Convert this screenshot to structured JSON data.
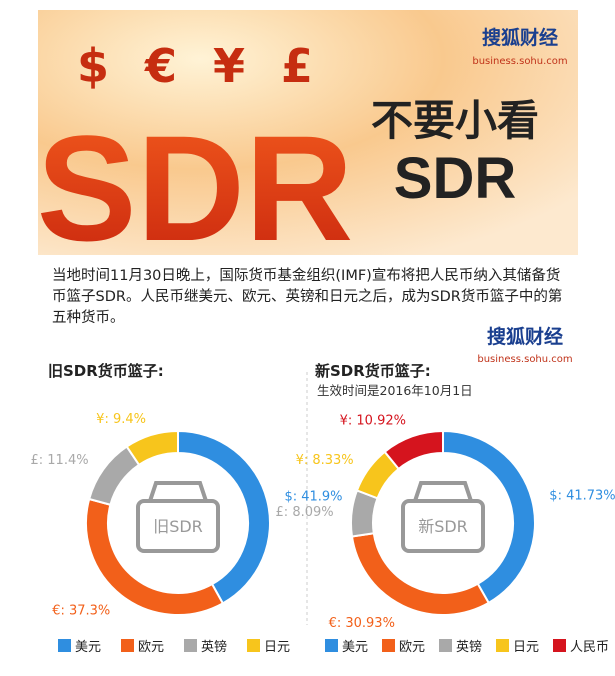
{
  "header": {
    "brand": "搜狐财经",
    "brand_url": "business.sohu.com",
    "symbols": "$ € ¥ £",
    "big_text": "SDR",
    "slogan_line1": "不要小看",
    "slogan_line2": "SDR"
  },
  "intro": "当地时间11月30日晚上，国际货币基金组织(IMF)宣布将把人民币纳入其储备货币篮子SDR。人民币继美元、欧元、英镑和日元之后，成为SDR货币篮子中的第五种货币。",
  "brand2": {
    "brand": "搜狐财经",
    "brand_url": "business.sohu.com"
  },
  "chart_data": [
    {
      "type": "pie",
      "title": "旧SDR货币篮子:",
      "center_label": "旧SDR",
      "categories": [
        "美元",
        "欧元",
        "英镑",
        "日元"
      ],
      "values": [
        41.9,
        37.3,
        11.4,
        9.4
      ],
      "value_labels": [
        "$: 41.9%",
        "€: 37.3%",
        "£: 11.4%",
        "¥: 9.4%"
      ],
      "colors": [
        "#2f8ee0",
        "#f2601a",
        "#a9a9a9",
        "#f7c51c"
      ]
    },
    {
      "type": "pie",
      "title": "新SDR货币篮子:",
      "subtitle": "生效时间是2016年10月1日",
      "center_label": "新SDR",
      "categories": [
        "美元",
        "欧元",
        "英镑",
        "日元",
        "人民币"
      ],
      "values": [
        41.73,
        30.93,
        8.09,
        8.33,
        10.92
      ],
      "value_labels": [
        "$: 41.73%",
        "€: 30.93%",
        "£: 8.09%",
        "¥: 8.33%",
        "¥: 10.92%"
      ],
      "colors": [
        "#2f8ee0",
        "#f2601a",
        "#a9a9a9",
        "#f7c51c",
        "#d5141e"
      ]
    }
  ]
}
